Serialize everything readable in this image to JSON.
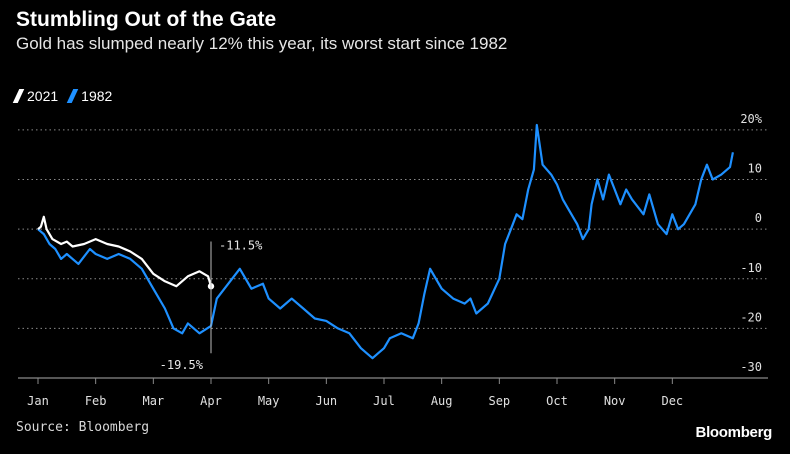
{
  "header": {
    "title": "Stumbling Out of the Gate",
    "subtitle": "Gold has slumped nearly 12% this year, its worst start since 1982"
  },
  "footer": {
    "source": "Source: Bloomberg",
    "brand": "Bloomberg"
  },
  "colors": {
    "background": "#000000",
    "series_2021": "#ffffff",
    "series_1982": "#1e90ff",
    "grid": "#8a8a8a"
  },
  "chart_data": {
    "type": "line",
    "title": "Stumbling Out of the Gate",
    "subtitle": "Gold has slumped nearly 12% this year, its worst start since 1982",
    "xlabel": "",
    "ylabel": "",
    "x_unit": "month of year (0 = Jan 1, 12 = Dec 31)",
    "xlim": [
      0,
      12
    ],
    "ylim": [
      -30,
      22
    ],
    "y_ticks": [
      20,
      10,
      0,
      -10,
      -20,
      -30
    ],
    "y_tick_labels": [
      "20%",
      "10",
      "0",
      "-10",
      "-20",
      "-30"
    ],
    "x_ticks": [
      0,
      1,
      2,
      3,
      4,
      5,
      6,
      7,
      8,
      9,
      10,
      11
    ],
    "x_tick_labels": [
      "Jan",
      "Feb",
      "Mar",
      "Apr",
      "May",
      "Jun",
      "Jul",
      "Aug",
      "Sep",
      "Oct",
      "Nov",
      "Dec"
    ],
    "grid": "horizontal-dotted",
    "legend_position": "top-left",
    "series": [
      {
        "name": "2021",
        "color": "#ffffff",
        "points": [
          [
            0,
            0
          ],
          [
            0.05,
            0.5
          ],
          [
            0.1,
            2.5
          ],
          [
            0.15,
            0
          ],
          [
            0.25,
            -2
          ],
          [
            0.4,
            -3
          ],
          [
            0.5,
            -2.5
          ],
          [
            0.6,
            -3.5
          ],
          [
            0.8,
            -3
          ],
          [
            1,
            -2
          ],
          [
            1.2,
            -3
          ],
          [
            1.4,
            -3.5
          ],
          [
            1.6,
            -4.5
          ],
          [
            1.8,
            -6
          ],
          [
            2,
            -9
          ],
          [
            2.2,
            -10.5
          ],
          [
            2.4,
            -11.5
          ],
          [
            2.6,
            -9.5
          ],
          [
            2.8,
            -8.5
          ],
          [
            2.95,
            -9.5
          ],
          [
            3.0,
            -11.5
          ]
        ]
      },
      {
        "name": "1982",
        "color": "#1e90ff",
        "points": [
          [
            0,
            0
          ],
          [
            0.1,
            -1
          ],
          [
            0.2,
            -3
          ],
          [
            0.3,
            -4
          ],
          [
            0.4,
            -6
          ],
          [
            0.5,
            -5
          ],
          [
            0.7,
            -7
          ],
          [
            0.9,
            -4
          ],
          [
            1,
            -5
          ],
          [
            1.2,
            -6
          ],
          [
            1.4,
            -5
          ],
          [
            1.6,
            -6
          ],
          [
            1.8,
            -8
          ],
          [
            2,
            -12
          ],
          [
            2.2,
            -16
          ],
          [
            2.35,
            -20
          ],
          [
            2.5,
            -21
          ],
          [
            2.6,
            -19
          ],
          [
            2.8,
            -21
          ],
          [
            3,
            -19.5
          ],
          [
            3.1,
            -14
          ],
          [
            3.3,
            -11
          ],
          [
            3.5,
            -8
          ],
          [
            3.7,
            -12
          ],
          [
            3.9,
            -11
          ],
          [
            4,
            -14
          ],
          [
            4.2,
            -16
          ],
          [
            4.4,
            -14
          ],
          [
            4.6,
            -16
          ],
          [
            4.8,
            -18
          ],
          [
            5,
            -18.5
          ],
          [
            5.2,
            -20
          ],
          [
            5.4,
            -21
          ],
          [
            5.6,
            -24
          ],
          [
            5.8,
            -26
          ],
          [
            5.9,
            -25
          ],
          [
            6,
            -24
          ],
          [
            6.1,
            -22
          ],
          [
            6.3,
            -21
          ],
          [
            6.5,
            -22
          ],
          [
            6.6,
            -19
          ],
          [
            6.7,
            -13
          ],
          [
            6.8,
            -8
          ],
          [
            6.9,
            -10
          ],
          [
            7,
            -12
          ],
          [
            7.2,
            -14
          ],
          [
            7.4,
            -15
          ],
          [
            7.5,
            -14
          ],
          [
            7.6,
            -17
          ],
          [
            7.8,
            -15
          ],
          [
            8,
            -10
          ],
          [
            8.1,
            -3
          ],
          [
            8.2,
            0
          ],
          [
            8.3,
            3
          ],
          [
            8.4,
            2
          ],
          [
            8.5,
            8
          ],
          [
            8.6,
            12
          ],
          [
            8.65,
            21
          ],
          [
            8.75,
            13
          ],
          [
            8.9,
            11
          ],
          [
            9,
            9
          ],
          [
            9.1,
            6
          ],
          [
            9.2,
            4
          ],
          [
            9.35,
            1
          ],
          [
            9.45,
            -2
          ],
          [
            9.55,
            0
          ],
          [
            9.6,
            5
          ],
          [
            9.7,
            10
          ],
          [
            9.8,
            6
          ],
          [
            9.9,
            11
          ],
          [
            10,
            8
          ],
          [
            10.1,
            5
          ],
          [
            10.2,
            8
          ],
          [
            10.3,
            6
          ],
          [
            10.5,
            3
          ],
          [
            10.6,
            7
          ],
          [
            10.75,
            1
          ],
          [
            10.9,
            -1
          ],
          [
            11,
            3
          ],
          [
            11.1,
            0
          ],
          [
            11.2,
            1
          ],
          [
            11.4,
            5
          ],
          [
            11.5,
            10
          ],
          [
            11.6,
            13
          ],
          [
            11.7,
            10
          ],
          [
            11.85,
            11
          ],
          [
            12,
            12.5
          ],
          [
            12.05,
            15.5
          ]
        ]
      }
    ],
    "annotations": [
      {
        "label": "-11.5%",
        "x": 3.0,
        "y": -11.5,
        "position": "above"
      },
      {
        "label": "-19.5%",
        "x": 3.0,
        "y": -19.5,
        "position": "below"
      }
    ]
  }
}
